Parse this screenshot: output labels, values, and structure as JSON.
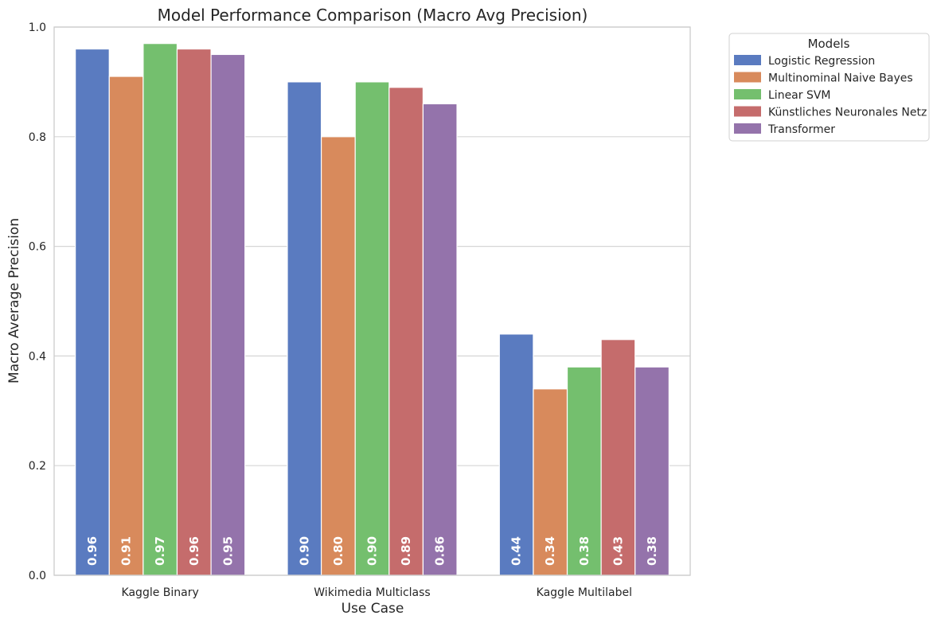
{
  "chart_data": {
    "type": "bar",
    "title": "Model Performance Comparison (Macro Avg Precision)",
    "xlabel": "Use Case",
    "ylabel": "Macro Average Precision",
    "ylim": [
      0,
      1.0
    ],
    "yticks": [
      "0.0",
      "0.2",
      "0.4",
      "0.6",
      "0.8",
      "1.0"
    ],
    "ytick_values": [
      0,
      0.2,
      0.4,
      0.6,
      0.8,
      1.0
    ],
    "grid": true,
    "legend_title": "Models",
    "legend_position": "outside-top-right",
    "categories": [
      "Kaggle Binary",
      "Wikimedia Multiclass",
      "Kaggle Multilabel"
    ],
    "series": [
      {
        "name": "Logistic Regression",
        "color": "#5a7bc0",
        "values": [
          0.96,
          0.9,
          0.44
        ],
        "labels": [
          "0.96",
          "0.90",
          "0.44"
        ]
      },
      {
        "name": "Multinominal Naive Bayes",
        "color": "#d88a5c",
        "values": [
          0.91,
          0.8,
          0.34
        ],
        "labels": [
          "0.91",
          "0.80",
          "0.34"
        ]
      },
      {
        "name": "Linear SVM",
        "color": "#74bf6e",
        "values": [
          0.97,
          0.9,
          0.38
        ],
        "labels": [
          "0.97",
          "0.90",
          "0.38"
        ]
      },
      {
        "name": "Künstliches Neuronales Netz",
        "color": "#c56c6c",
        "values": [
          0.96,
          0.89,
          0.43
        ],
        "labels": [
          "0.96",
          "0.89",
          "0.43"
        ]
      },
      {
        "name": "Transformer",
        "color": "#9473ab",
        "values": [
          0.95,
          0.86,
          0.38
        ],
        "labels": [
          "0.95",
          "0.86",
          "0.38"
        ]
      }
    ]
  }
}
